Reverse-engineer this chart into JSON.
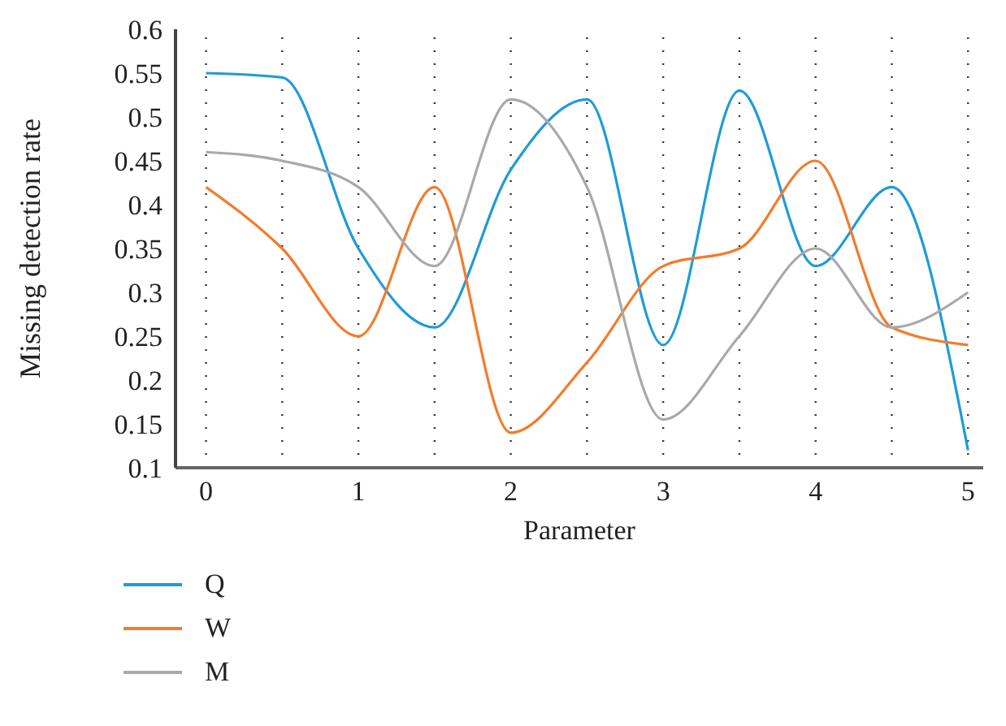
{
  "chart_data": {
    "type": "line",
    "xlabel": "Parameter",
    "ylabel": "Missing detection rate",
    "x": [
      0,
      0.5,
      1,
      1.5,
      2,
      2.5,
      3,
      3.5,
      4,
      4.5,
      5
    ],
    "series": [
      {
        "name": "Q",
        "color": "#1f9bd7",
        "values": [
          0.55,
          0.545,
          0.35,
          0.26,
          0.44,
          0.52,
          0.24,
          0.53,
          0.33,
          0.42,
          0.12
        ]
      },
      {
        "name": "W",
        "color": "#f47b2a",
        "values": [
          0.42,
          0.35,
          0.25,
          0.42,
          0.14,
          0.22,
          0.33,
          0.35,
          0.45,
          0.26,
          0.24
        ]
      },
      {
        "name": "M",
        "color": "#a9a9a9",
        "values": [
          0.46,
          0.45,
          0.42,
          0.33,
          0.52,
          0.42,
          0.155,
          0.25,
          0.35,
          0.26,
          0.3
        ]
      }
    ],
    "xlim": [
      -0.2,
      5.1
    ],
    "xticks": [
      0,
      {
        "value": 0.5,
        "label": null
      },
      1,
      {
        "value": 1.5,
        "label": null
      },
      2,
      {
        "value": 2.5,
        "label": null
      },
      3,
      {
        "value": 3.5,
        "label": null
      },
      4,
      {
        "value": 4.5,
        "label": null
      },
      5
    ],
    "ylim": [
      0.1,
      0.6
    ],
    "yticks": [
      0.1,
      0.15,
      0.2,
      0.25,
      0.3,
      0.35,
      0.4,
      0.45,
      0.5,
      0.55,
      0.6
    ],
    "grid": "x",
    "legend": "bottom left",
    "marker": "none",
    "line_style": "solid"
  }
}
